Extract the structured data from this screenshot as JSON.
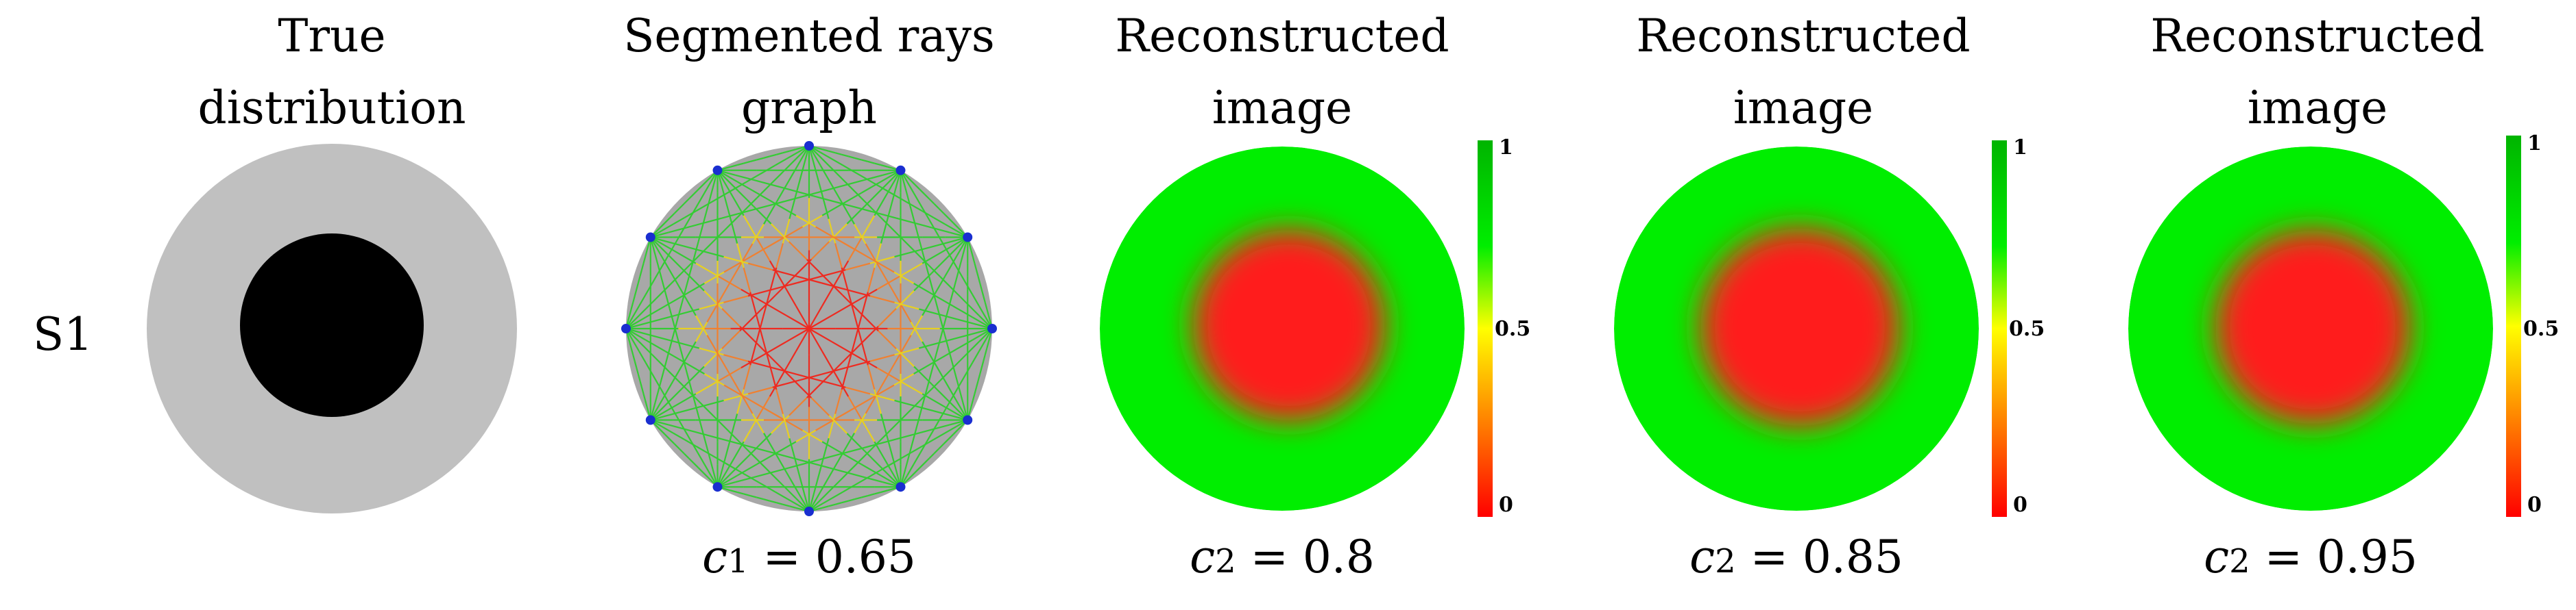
{
  "row_label": "S1",
  "columns": [
    {
      "title_line1": "True",
      "title_line2": "distribution",
      "caption": null
    },
    {
      "title_line1": "Segmented rays",
      "title_line2": "graph",
      "caption": {
        "symbol": "c",
        "subscript": "1",
        "equals": "=",
        "value": "0.65"
      }
    },
    {
      "title_line1": "Reconstructed",
      "title_line2": "image",
      "caption": {
        "symbol": "c",
        "subscript": "2",
        "equals": "=",
        "value": "0.8"
      }
    },
    {
      "title_line1": "Reconstructed",
      "title_line2": "image",
      "caption": {
        "symbol": "c",
        "subscript": "2",
        "equals": "=",
        "value": "0.85"
      }
    },
    {
      "title_line1": "Reconstructed",
      "title_line2": "image",
      "caption": {
        "symbol": "c",
        "subscript": "2",
        "equals": "=",
        "value": "0.95"
      }
    }
  ],
  "colorbar_ticks": [
    "1",
    "0.5",
    "0"
  ],
  "colors": {
    "background_gray": "#c0c0c0",
    "inclusion_black": "#000000",
    "graph_disc": "#a8a8a8",
    "sensor_dot": "#1a2fd0",
    "ray_green": "#33cc33",
    "ray_yellow": "#e8d020",
    "ray_orange": "#f08030",
    "ray_red": "#ee2a20",
    "image_green": "#00ee00",
    "image_red": "#ff1a1a",
    "colorbar_top": "#00b400",
    "colorbar_mid": "#ffff00",
    "colorbar_bottom": "#ff0000"
  },
  "sensor_count": 12
}
